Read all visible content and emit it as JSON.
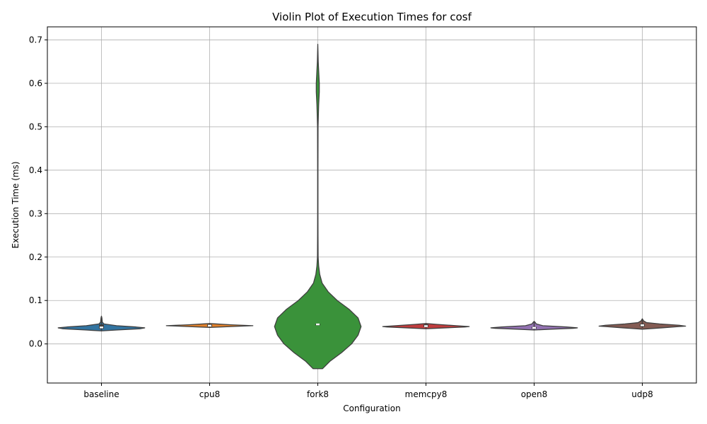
{
  "chart_data": {
    "type": "violin",
    "title": "Violin Plot of Execution Times for cosf",
    "xlabel": "Configuration",
    "ylabel": "Execution Time (ms)",
    "ylim": [
      -0.09,
      0.73
    ],
    "yticks": [
      0.0,
      0.1,
      0.2,
      0.3,
      0.4,
      0.5,
      0.6,
      0.7
    ],
    "ytick_labels": [
      "0.0",
      "0.1",
      "0.2",
      "0.3",
      "0.4",
      "0.5",
      "0.6",
      "0.7"
    ],
    "grid": true,
    "categories": [
      "baseline",
      "cpu8",
      "fork8",
      "memcpy8",
      "open8",
      "udp8"
    ],
    "series": [
      {
        "category": "baseline",
        "color": "#3274a1",
        "median": 0.038,
        "q1": 0.035,
        "q3": 0.045,
        "whisker_low": 0.031,
        "whisker_high": 0.062,
        "density": [
          [
            0.03,
            0.0
          ],
          [
            0.032,
            0.35
          ],
          [
            0.035,
            0.9
          ],
          [
            0.037,
            1.0
          ],
          [
            0.039,
            0.8
          ],
          [
            0.042,
            0.35
          ],
          [
            0.046,
            0.06
          ],
          [
            0.05,
            0.02
          ],
          [
            0.055,
            0.015
          ],
          [
            0.06,
            0.01
          ],
          [
            0.064,
            0.0
          ]
        ]
      },
      {
        "category": "cpu8",
        "color": "#e1812c",
        "median": 0.042,
        "q1": 0.04,
        "q3": 0.045,
        "whisker_low": 0.038,
        "whisker_high": 0.047,
        "density": [
          [
            0.038,
            0.0
          ],
          [
            0.04,
            0.5
          ],
          [
            0.042,
            1.0
          ],
          [
            0.044,
            0.5
          ],
          [
            0.047,
            0.0
          ]
        ]
      },
      {
        "category": "fork8",
        "color": "#3a923a",
        "median": 0.045,
        "q1": 0.044,
        "q3": 0.046,
        "whisker_low": 0.043,
        "whisker_high": 0.047,
        "density": [
          [
            -0.057,
            0.11
          ],
          [
            -0.05,
            0.18
          ],
          [
            -0.04,
            0.28
          ],
          [
            -0.02,
            0.55
          ],
          [
            0.0,
            0.78
          ],
          [
            0.02,
            0.93
          ],
          [
            0.04,
            1.0
          ],
          [
            0.06,
            0.93
          ],
          [
            0.08,
            0.72
          ],
          [
            0.1,
            0.45
          ],
          [
            0.12,
            0.24
          ],
          [
            0.14,
            0.1
          ],
          [
            0.16,
            0.045
          ],
          [
            0.18,
            0.02
          ],
          [
            0.2,
            0.008
          ],
          [
            0.25,
            0.005
          ],
          [
            0.3,
            0.004
          ],
          [
            0.4,
            0.004
          ],
          [
            0.5,
            0.006
          ],
          [
            0.55,
            0.02
          ],
          [
            0.58,
            0.035
          ],
          [
            0.6,
            0.035
          ],
          [
            0.62,
            0.025
          ],
          [
            0.65,
            0.01
          ],
          [
            0.69,
            0.0
          ]
        ]
      },
      {
        "category": "memcpy8",
        "color": "#c03d3e",
        "median": 0.041,
        "q1": 0.039,
        "q3": 0.045,
        "whisker_low": 0.036,
        "whisker_high": 0.047,
        "density": [
          [
            0.035,
            0.0
          ],
          [
            0.037,
            0.45
          ],
          [
            0.039,
            0.9
          ],
          [
            0.04,
            1.0
          ],
          [
            0.042,
            0.7
          ],
          [
            0.045,
            0.25
          ],
          [
            0.047,
            0.0
          ]
        ]
      },
      {
        "category": "open8",
        "color": "#9372b2",
        "median": 0.037,
        "q1": 0.035,
        "q3": 0.039,
        "whisker_low": 0.033,
        "whisker_high": 0.05,
        "density": [
          [
            0.032,
            0.0
          ],
          [
            0.034,
            0.4
          ],
          [
            0.036,
            0.9
          ],
          [
            0.037,
            1.0
          ],
          [
            0.039,
            0.75
          ],
          [
            0.042,
            0.2
          ],
          [
            0.046,
            0.05
          ],
          [
            0.05,
            0.02
          ],
          [
            0.052,
            0.0
          ]
        ]
      },
      {
        "category": "udp8",
        "color": "#845b53",
        "median": 0.043,
        "q1": 0.04,
        "q3": 0.046,
        "whisker_low": 0.037,
        "whisker_high": 0.057,
        "density": [
          [
            0.034,
            0.0
          ],
          [
            0.037,
            0.45
          ],
          [
            0.04,
            0.85
          ],
          [
            0.041,
            1.0
          ],
          [
            0.043,
            0.85
          ],
          [
            0.046,
            0.4
          ],
          [
            0.049,
            0.1
          ],
          [
            0.053,
            0.03
          ],
          [
            0.058,
            0.0
          ]
        ]
      }
    ]
  }
}
